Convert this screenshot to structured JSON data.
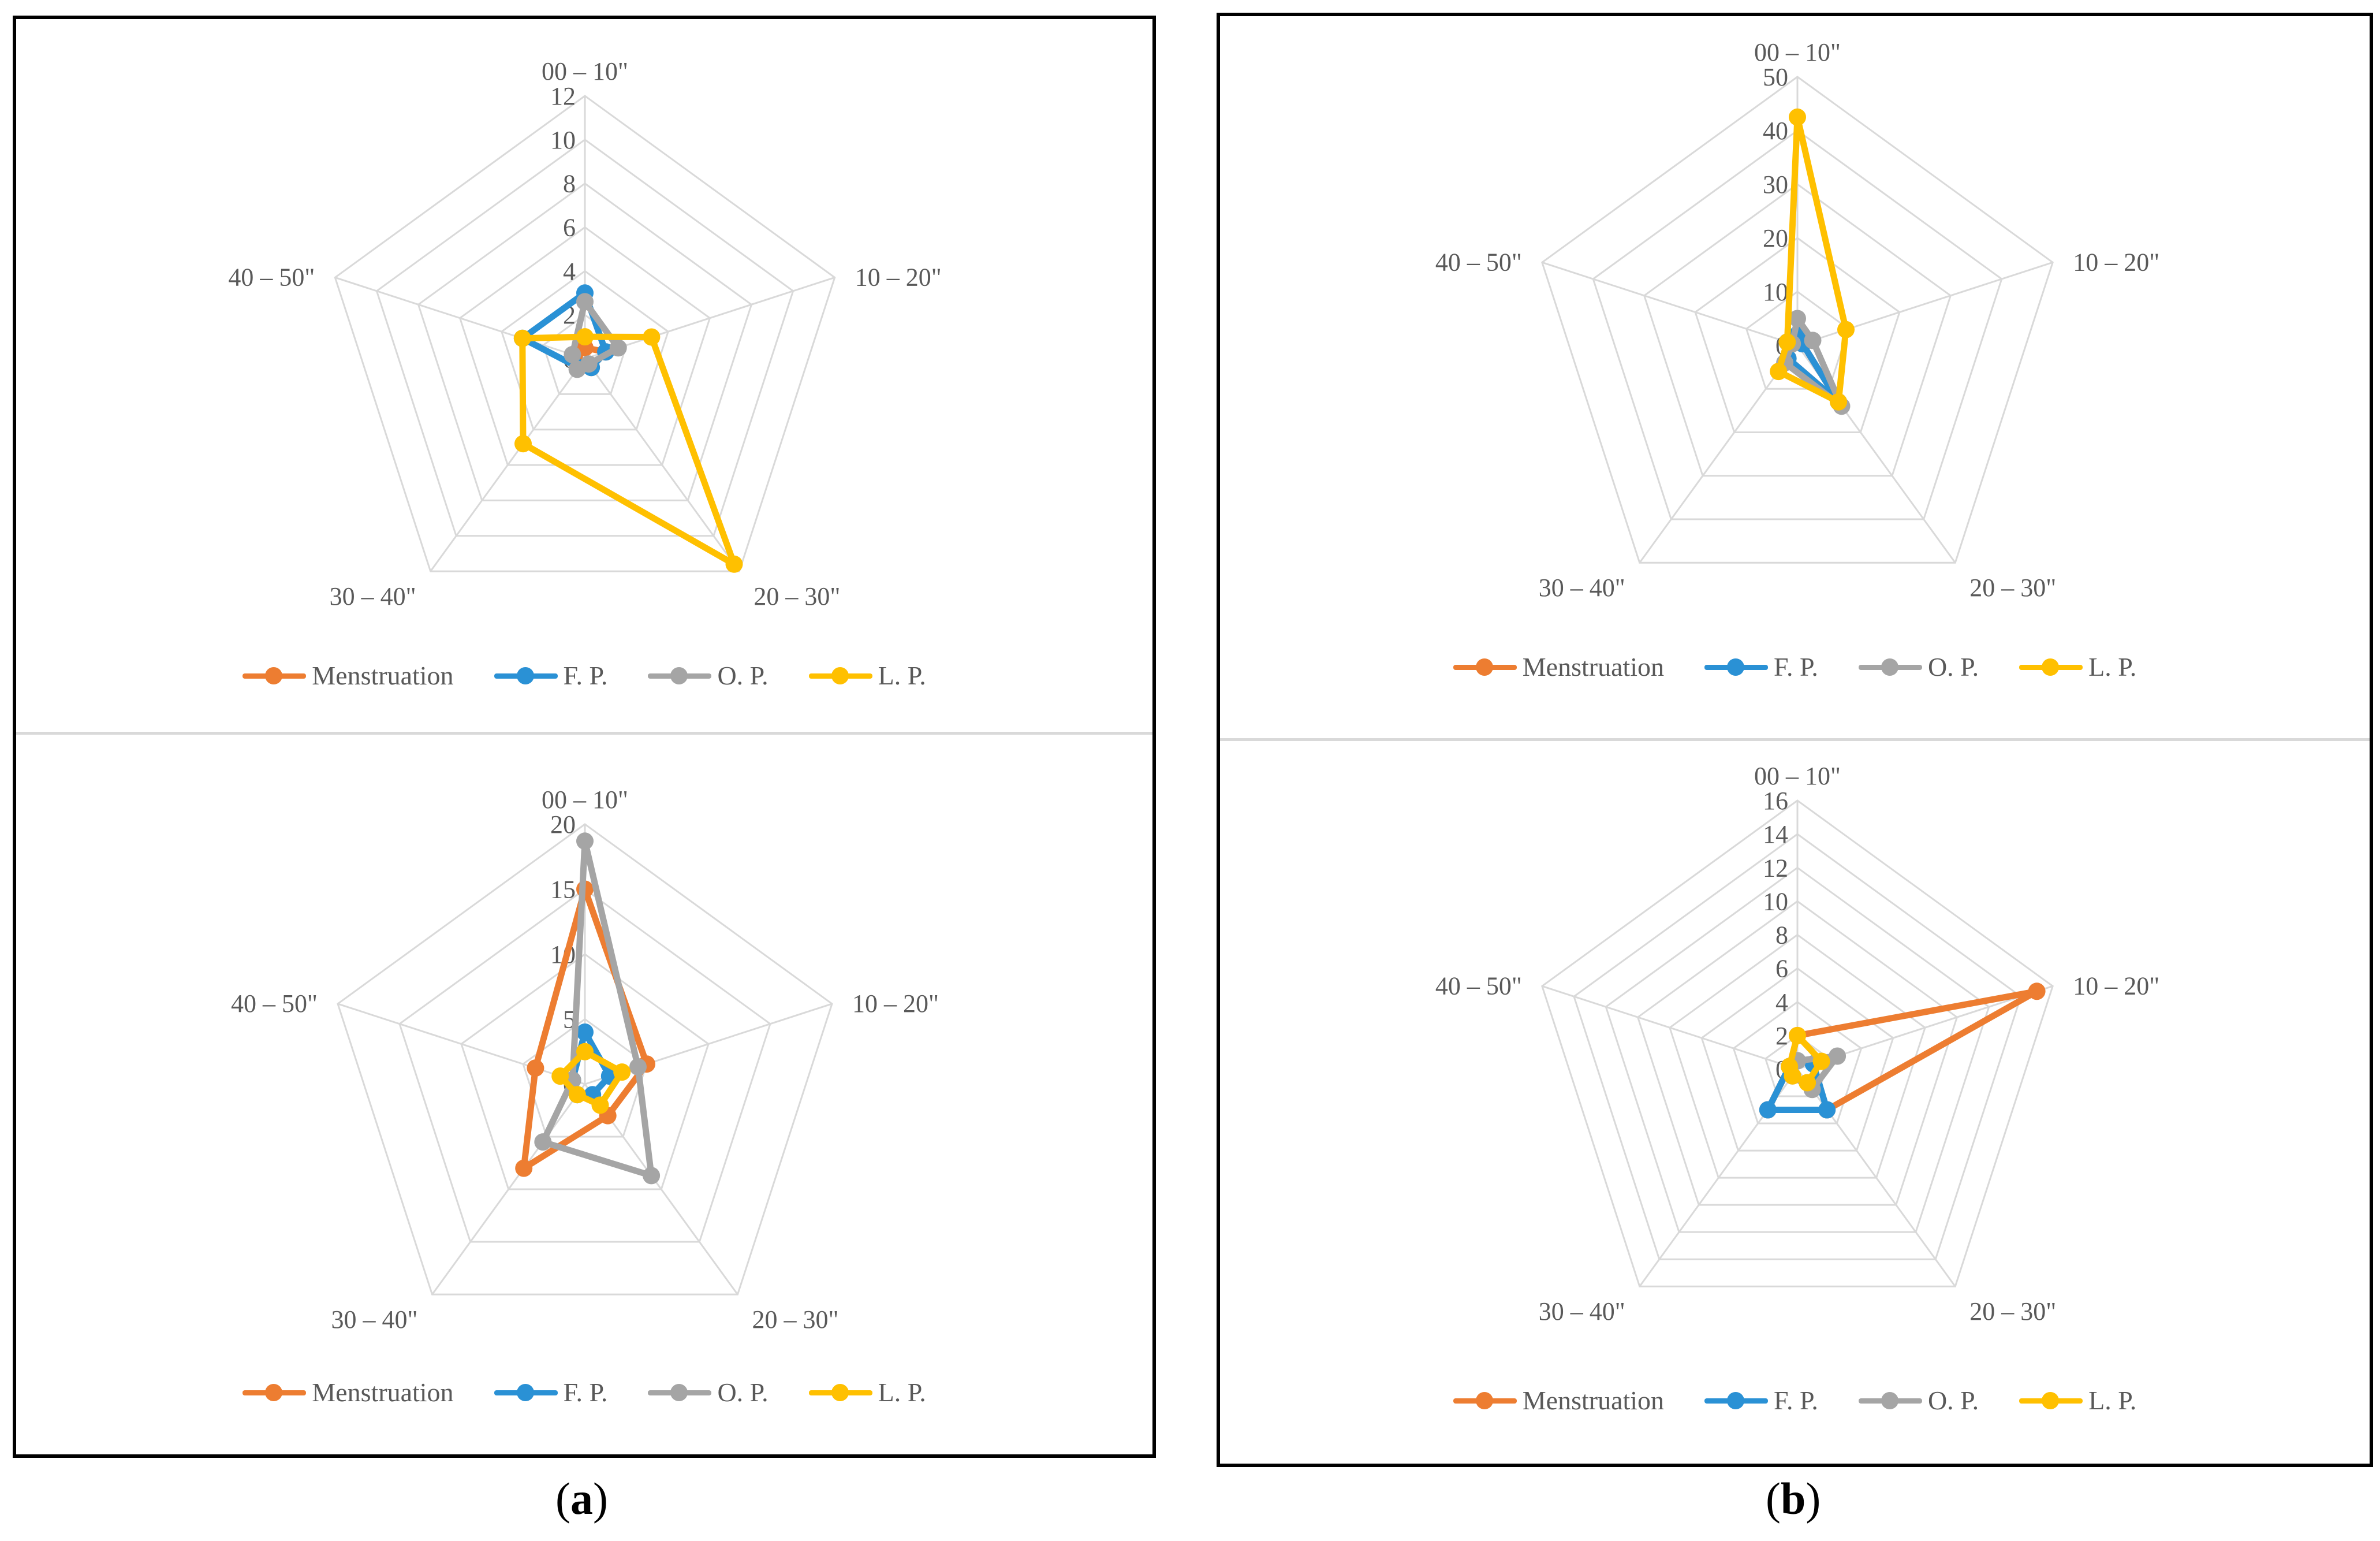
{
  "colors": {
    "Menstruation": "#ED7D31",
    "F. P.": "#2A91D5",
    "O. P.": "#A5A5A5",
    "L. P.": "#FFC000"
  },
  "chart_data": [
    {
      "type": "radar",
      "panel": "a",
      "position": "top",
      "axes": [
        "00 – 10\"",
        "10 – 20\"",
        "20 – 30\"",
        "30 – 40\"",
        "40 – 50\""
      ],
      "ticks": [
        "0",
        "2",
        "4",
        "6",
        "8",
        "10",
        "12"
      ],
      "rlim": [
        0,
        12
      ],
      "series": [
        {
          "name": "Menstruation",
          "values": [
            0.5,
            1,
            0.5,
            0.5,
            0.5
          ]
        },
        {
          "name": "F. P.",
          "values": [
            3,
            1,
            0.5,
            0.5,
            3
          ]
        },
        {
          "name": "O. P.",
          "values": [
            2.6,
            1.6,
            0.3,
            0.6,
            0.6
          ]
        },
        {
          "name": "L. P.",
          "values": [
            1,
            3.2,
            11.6,
            4.8,
            3
          ]
        }
      ]
    },
    {
      "type": "radar",
      "panel": "a",
      "position": "bottom",
      "axes": [
        "00 – 10\"",
        "10 – 20\"",
        "20 – 30\"",
        "30 – 40\"",
        "40 – 50\""
      ],
      "ticks": [
        "0",
        "5",
        "10",
        "15",
        "20"
      ],
      "rlim": [
        0,
        20
      ],
      "series": [
        {
          "name": "Menstruation",
          "values": [
            15,
            5,
            3,
            8,
            4
          ]
        },
        {
          "name": "F. P.",
          "values": [
            4,
            2,
            1,
            1,
            1
          ]
        },
        {
          "name": "O. P.",
          "values": [
            18.7,
            4.3,
            8.7,
            5.5,
            1
          ]
        },
        {
          "name": "L. P.",
          "values": [
            2.5,
            3,
            2,
            1,
            2
          ]
        }
      ]
    },
    {
      "type": "radar",
      "panel": "b",
      "position": "top",
      "axes": [
        "00 – 10\"",
        "10 – 20\"",
        "20 – 30\"",
        "30 – 40\"",
        "40 – 50\""
      ],
      "ticks": [
        "0",
        "10",
        "20",
        "30",
        "40",
        "50"
      ],
      "rlim": [
        0,
        50
      ],
      "series": [
        {
          "name": "Menstruation",
          "values": [
            1,
            1,
            13,
            3,
            2
          ]
        },
        {
          "name": "F. P.",
          "values": [
            2,
            1,
            13,
            3,
            2
          ]
        },
        {
          "name": "O. P.",
          "values": [
            5,
            3,
            14,
            4,
            1
          ]
        },
        {
          "name": "L. P.",
          "values": [
            42.5,
            9.5,
            13,
            6,
            2
          ]
        }
      ]
    },
    {
      "type": "radar",
      "panel": "b",
      "position": "bottom",
      "axes": [
        "00 – 10\"",
        "10 – 20\"",
        "20 – 30\"",
        "30 – 40\"",
        "40 – 50\""
      ],
      "ticks": [
        "0",
        "2",
        "4",
        "6",
        "8",
        "10",
        "12",
        "14",
        "16"
      ],
      "rlim": [
        0,
        16
      ],
      "series": [
        {
          "name": "Menstruation",
          "values": [
            2,
            15,
            3,
            3,
            0.5
          ]
        },
        {
          "name": "F. P.",
          "values": [
            0.5,
            1,
            3,
            3,
            0.5
          ]
        },
        {
          "name": "O. P.",
          "values": [
            0.5,
            2.5,
            1.5,
            0.5,
            0.5
          ]
        },
        {
          "name": "L. P.",
          "values": [
            2,
            1.5,
            1,
            0.5,
            0.5
          ]
        }
      ]
    }
  ],
  "legend": [
    "Menstruation",
    "F. P.",
    "O. P.",
    "L. P."
  ],
  "captions": {
    "a": "a",
    "b": "b"
  }
}
